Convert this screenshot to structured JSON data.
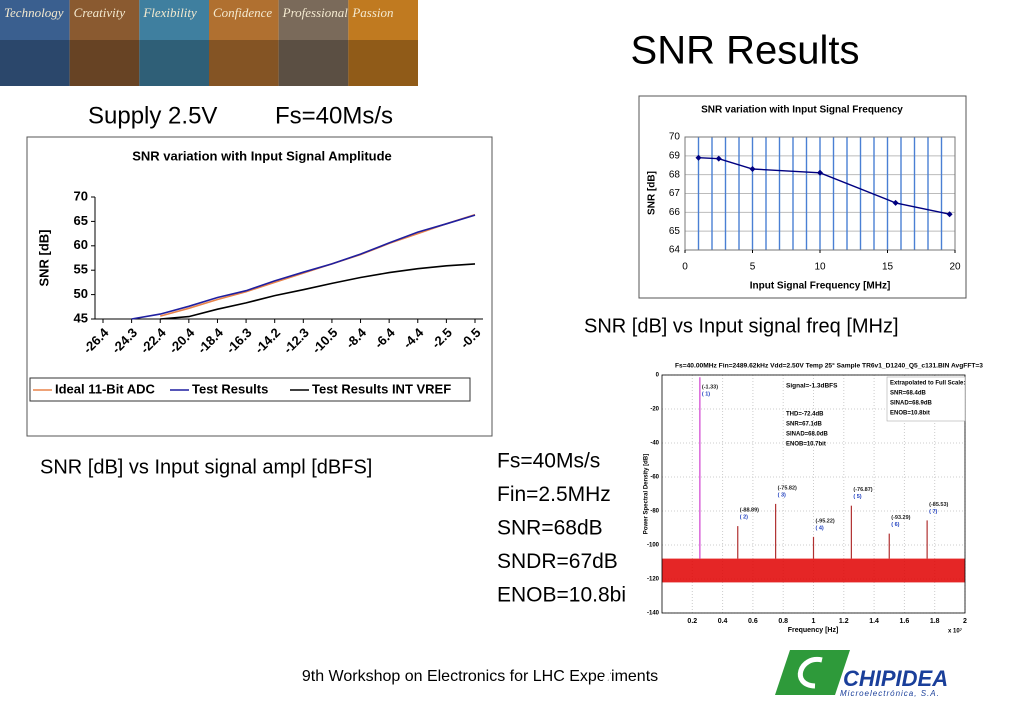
{
  "banner": {
    "words": [
      "Technology",
      "Creativity",
      "Flexibility",
      "Confidence",
      "Professional",
      "Passion"
    ]
  },
  "title": "SNR Results",
  "supply": "Supply 2.5V",
  "fs": "Fs=40Ms/s",
  "captions": {
    "amplitude": "SNR [dB] vs Input signal ampl [dBFS]",
    "frequency": "SNR [dB] vs Input signal freq [MHz]"
  },
  "specs": [
    "Fs=40Ms/s",
    "Fin=2.5MHz",
    "SNR=68dB",
    "SNDR=67dB",
    "ENOB=10.8bi"
  ],
  "footer": "9th Workshop on Electronics for LHC Experiments",
  "logo": {
    "name": "CHIPIDEA",
    "tagline": "Microelectrónica, S.A."
  },
  "chart_data": [
    {
      "type": "line",
      "title": "SNR variation with Input Signal Amplitude",
      "ylabel": "SNR [dB]",
      "categories": [
        "-26.4",
        "-24.3",
        "-22.4",
        "-20.4",
        "-18.4",
        "-16.3",
        "-14.2",
        "-12.3",
        "-10.5",
        "-8.4",
        "-6.4",
        "-4.4",
        "-2.5",
        "-0.5"
      ],
      "ylim": [
        45,
        70
      ],
      "yticks": [
        45,
        50,
        55,
        60,
        65,
        70
      ],
      "legend": "bottom",
      "series": [
        {
          "name": "Ideal 11-Bit ADC",
          "color": "#e8834a",
          "values": [
            null,
            null,
            45.6,
            47.2,
            49,
            50.6,
            52.5,
            54.4,
            56.3,
            58.2,
            60.5,
            62.5,
            64.5,
            66.4
          ]
        },
        {
          "name": "Test Results",
          "color": "#1f1fa0",
          "values": [
            null,
            45,
            46,
            47.6,
            49.4,
            50.8,
            52.8,
            54.6,
            56.3,
            58.3,
            60.6,
            62.8,
            64.5,
            66.3
          ]
        },
        {
          "name": "Test Results INT VREF",
          "color": "#000000",
          "values": [
            null,
            null,
            45,
            45.5,
            47,
            48.3,
            49.8,
            51,
            52.3,
            53.5,
            54.5,
            55.3,
            55.9,
            56.3
          ]
        }
      ]
    },
    {
      "type": "line",
      "title": "SNR variation with Input Signal Frequency",
      "xlabel": "Input Signal Frequency [MHz]",
      "ylabel": "SNR [dB]",
      "x": [
        1,
        2.5,
        5,
        10,
        15.6,
        19.6
      ],
      "xlim": [
        0,
        20
      ],
      "xticks": [
        0,
        5,
        10,
        15,
        20
      ],
      "ylim": [
        64,
        70
      ],
      "yticks": [
        64,
        65,
        66,
        67,
        68,
        69,
        70
      ],
      "grid": true,
      "x_grid": {
        "color": "#4a7fd4",
        "values": [
          1,
          2,
          3,
          4,
          5,
          6,
          7,
          8,
          9,
          10,
          11,
          12,
          13,
          14,
          15,
          16,
          17,
          18,
          19
        ]
      },
      "markers": true,
      "series": [
        {
          "color": "#000080",
          "values": [
            68.9,
            68.85,
            68.3,
            68.1,
            66.5,
            65.9
          ]
        }
      ]
    },
    {
      "type": "spectrum",
      "title": "Fs=40.00MHz  Fin=2489.62kHz  Vdd=2.50V  Temp 25°  Sample TR6v1_D1240_Q5_c131.BIN  AvgFFT=3",
      "xlabel": "Frequency [Hz]",
      "ylabel": "Power Spectral Density [dB]",
      "x_multiplier": "x 10⁷",
      "xlim": [
        0,
        2
      ],
      "xticks": [
        0.2,
        0.4,
        0.6,
        0.8,
        1,
        1.2,
        1.4,
        1.6,
        1.8,
        2
      ],
      "ylim": [
        -140,
        0
      ],
      "yticks": [
        -140,
        -120,
        -100,
        -80,
        -60,
        -40,
        -20,
        0
      ],
      "grid": true,
      "color": "#e00000",
      "noise_band": [
        -122,
        -108
      ],
      "peaks": {
        "x": [
          0.25,
          0.5,
          0.75,
          1,
          1.25,
          1.5,
          1.75
        ],
        "values": [
          -1.33,
          -88.89,
          -75.82,
          -95.22,
          -76.87,
          -93.29,
          -85.53
        ],
        "value_labels": [
          "(-1.33)",
          "(-88.89)",
          "(-75.82)",
          "(-95.22)",
          "(-76.87)",
          "(-93.29)",
          "(-85.53)"
        ],
        "labels": [
          "( 1)",
          "( 2)",
          "( 3)",
          "( 4)",
          "( 5)",
          "( 6)",
          "( 7)"
        ]
      },
      "annotations": {
        "signal": "Signal=-1.3dBFS",
        "measured": [
          "THD=-72.4dB",
          "SNR=67.1dB",
          "SINAD=68.0dB",
          "ENOB=10.7bit"
        ],
        "extrapolated": [
          "Extrapolated to Full Scale:",
          "SNR=68.4dB",
          "SINAD=68.9dB",
          "ENOB=10.8bit"
        ]
      }
    }
  ]
}
